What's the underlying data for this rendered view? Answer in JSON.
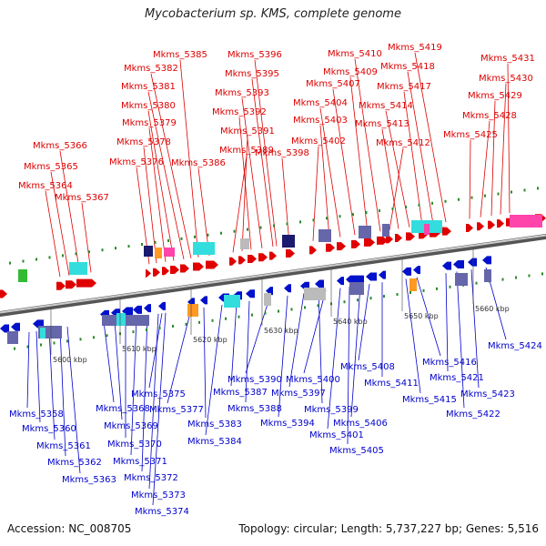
{
  "title": "Mycobacterium sp. KMS, complete genome",
  "footer": {
    "accession": "Accession: NC_008705",
    "summary": "Topology: circular; Length: 5,737,227 bp; Genes: 5,516"
  },
  "colors": {
    "forward": "#e00000",
    "reverse": "#0011cc",
    "forward_label": "#dd0000",
    "reverse_label": "#0000cc",
    "backbone": "#888888",
    "tick": "#2a8a2a",
    "cyan": "#33dddd",
    "navy": "#1a1a6e",
    "pink": "#ff44aa",
    "gray": "#bbbbbb",
    "slate": "#6666aa",
    "orange": "#ff9922",
    "green": "#33bb33"
  },
  "forward_labels": [
    "Mkms_5364",
    "Mkms_5365",
    "Mkms_5366",
    "Mkms_5367",
    "Mkms_5376",
    "Mkms_5378",
    "Mkms_5379",
    "Mkms_5380",
    "Mkms_5381",
    "Mkms_5382",
    "Mkms_5385",
    "Mkms_5386",
    "Mkms_5389",
    "Mkms_5391",
    "Mkms_5392",
    "Mkms_5393",
    "Mkms_5395",
    "Mkms_5396",
    "Mkms_5398",
    "Mkms_5402",
    "Mkms_5403",
    "Mkms_5404",
    "Mkms_5407",
    "Mkms_5409",
    "Mkms_5410",
    "Mkms_5412",
    "Mkms_5413",
    "Mkms_5414",
    "Mkms_5417",
    "Mkms_5418",
    "Mkms_5419",
    "Mkms_5425",
    "Mkms_5428",
    "Mkms_5429",
    "Mkms_5430",
    "Mkms_5431"
  ],
  "reverse_labels": [
    "Mkms_5358",
    "Mkms_5360",
    "Mkms_5361",
    "Mkms_5362",
    "Mkms_5363",
    "Mkms_5368",
    "Mkms_5369",
    "Mkms_5370",
    "Mkms_5371",
    "Mkms_5372",
    "Mkms_5373",
    "Mkms_5374",
    "Mkms_5375",
    "Mkms_5377",
    "Mkms_5383",
    "Mkms_5384",
    "Mkms_5387",
    "Mkms_5388",
    "Mkms_5390",
    "Mkms_5394",
    "Mkms_5397",
    "Mkms_5399",
    "Mkms_5400",
    "Mkms_5401",
    "Mkms_5405",
    "Mkms_5406",
    "Mkms_5408",
    "Mkms_5411",
    "Mkms_5415",
    "Mkms_5416",
    "Mkms_5421",
    "Mkms_5422",
    "Mkms_5423",
    "Mkms_5424"
  ],
  "kbp_labels": [
    "5600 kbp",
    "5610 kbp",
    "5620 kbp",
    "5630 kbp",
    "5640 kbp",
    "5650 kbp",
    "5660 kbp"
  ]
}
